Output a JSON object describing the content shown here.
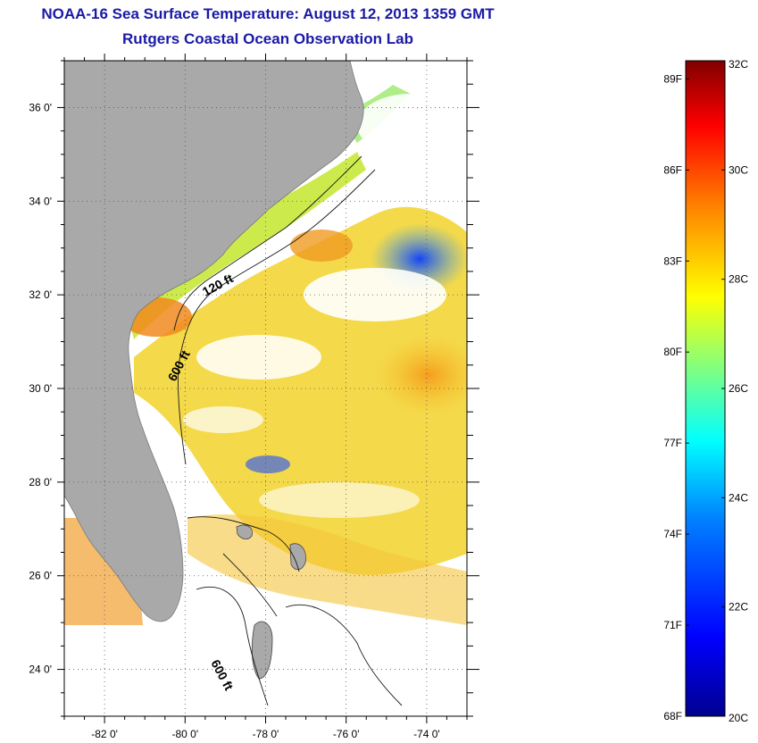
{
  "title": {
    "line1": "NOAA-16 Sea Surface Temperature:  August 12, 2013 1359 GMT",
    "line2": "Rutgers Coastal Ocean Observation Lab"
  },
  "map": {
    "latitude_ticks": [
      {
        "value": 36,
        "label": "36 0'"
      },
      {
        "value": 34,
        "label": "34 0'"
      },
      {
        "value": 32,
        "label": "32 0'"
      },
      {
        "value": 30,
        "label": "30 0'"
      },
      {
        "value": 28,
        "label": "28 0'"
      },
      {
        "value": 26,
        "label": "26 0'"
      },
      {
        "value": 24,
        "label": "24 0'"
      }
    ],
    "longitude_ticks": [
      {
        "value": -82,
        "label": "-82 0'"
      },
      {
        "value": -80,
        "label": "-80 0'"
      },
      {
        "value": -78,
        "label": "-78 0'"
      },
      {
        "value": -76,
        "label": "-76 0'"
      },
      {
        "value": -74,
        "label": "-74 0'"
      }
    ],
    "lat_range": [
      23,
      37
    ],
    "lon_range": [
      -83,
      -73
    ],
    "contour_labels": {
      "c120": "120 ft",
      "c600a": "600 ft",
      "c600b": "600 ft"
    },
    "colors": {
      "land": "#a9a9a9",
      "cloud": "#ffffff"
    }
  },
  "colorbar": {
    "fahrenheit_labels": [
      "89F",
      "86F",
      "83F",
      "80F",
      "77F",
      "74F",
      "71F",
      "68F"
    ],
    "celsius_labels": [
      "32C",
      "30C",
      "28C",
      "26C",
      "24C",
      "22C",
      "20C"
    ],
    "range_celsius": [
      20,
      32
    ],
    "colors": [
      "#00008f",
      "#0000ff",
      "#0080ff",
      "#00ffff",
      "#80ff80",
      "#ffff00",
      "#ff8000",
      "#ff0000",
      "#800000"
    ]
  }
}
